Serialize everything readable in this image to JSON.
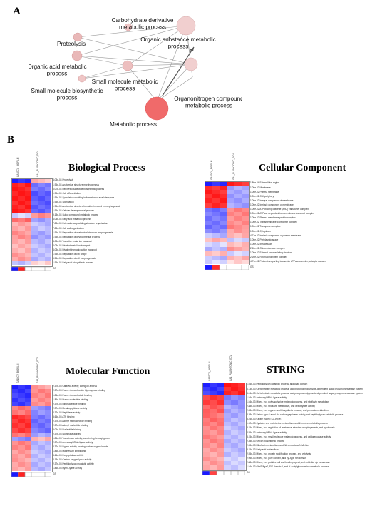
{
  "panelA": {
    "label": "A"
  },
  "panelB": {
    "label": "B"
  },
  "network": {
    "nodes": [
      {
        "id": "proteolysis",
        "label": [
          "Proteolysis"
        ]
      },
      {
        "id": "carb",
        "label": [
          "Carbohydrate derivative",
          "metabolic process"
        ]
      },
      {
        "id": "orgsub",
        "label": [
          "Organic substance metabolic",
          "process"
        ]
      },
      {
        "id": "orgacid",
        "label": [
          "Organic acid metabolic",
          "process"
        ]
      },
      {
        "id": "smallmol",
        "label": [
          "Small molecule metabolic",
          "process"
        ]
      },
      {
        "id": "smallbio",
        "label": [
          "Small molecule biosynthetic",
          "process"
        ]
      },
      {
        "id": "organonitrogen",
        "label": [
          "Organonitrogen compound",
          "metabolic process"
        ]
      },
      {
        "id": "metabolic",
        "label": [
          "Metabolic process"
        ]
      }
    ]
  },
  "heatmaps": {
    "bp": {
      "title": "Biological Process",
      "columns": [
        "GA1ECV_BIOFILM",
        "GA1_PLANKTONIC_ECV"
      ],
      "rows": [
        "4.08e-04 Proteolysis",
        "1.95e-04 Anatomical structure morphogenesis",
        "6.07e-04 Deoxyribonucleotide biosynthetic process",
        "1.95e-04 Cell differentiation",
        "1.95e-04 Sporulation resulting in formation of a cellular spore",
        "1.95e-04 Sporulation",
        "1.95e-04 Anatomical structure formation involved in morphogenesis",
        "1.95e-04 Cellular developmental process",
        "9.18e-04 Sulfur compound metabolic process",
        "4.08e-04 Fatty acid metabolic process",
        "7.83e-04 External encapsulating structure organization",
        "7.83e-04 Cell wall organization",
        "1.95e-04 Regulation of anatomical structure morphogenesis",
        "1.95e-04 Regulation of developmental process",
        "4.08e-04 Transition metal ion transport",
        "4.08e-04 Divalent metal ion transport",
        "4.08e-04 Divalent inorganic cation transport",
        "1.95e-04 Regulation of cell shape",
        "6.56e-04 Regulation of cell morphogenesis",
        "1.95e-04 Fatty acid biosynthetic process"
      ],
      "gs_label": "GS"
    },
    "cc": {
      "title": "Cellular Component",
      "columns": [
        "GA1ECV_BIOFILM",
        "GA1_PLANKTONIC_ECV"
      ],
      "rows": [
        "1.86e-04 Extracellular region",
        "1.00e-02 Membrane",
        "1.00e-02 Plasma membrane",
        "1.00e-02 Cell periphery",
        "1.00e-02 Integral component of membrane",
        "1.00e-02 Intrinsic component of membrane",
        "1.00e-02 ATP-binding cassette (ABC) transporter complex",
        "1.00e-02 ATPase dependent transmembrane transport complex",
        "1.00e-02 Plasma membrane protein complex",
        "1.00e-02 Transmembrane transporter complex",
        "1.00e-02 Transporter complex",
        "1.00e-02 Cytoplasm",
        "4.71e-02 Intrinsic component of plasma membrane",
        "1.00e-02 Periplasmic space",
        "1.00e-02 Intracellular",
        "2.12e-02 Oxidoreductase complex",
        "1.00e-02 External encapsulating structure",
        "2.20e-02 Ribonucleoprotein complex",
        "4.71e-02 Proton-transporting two-sector ATPase complex, catalytic domain"
      ],
      "gs_label": "GS"
    },
    "mf": {
      "title": "Molecular Function",
      "columns": [
        "GA1ECV_BIOFILM",
        "GA1_PLANKTONIC_ECV"
      ],
      "rows": [
        "2.37e-03 Catalytic activity, acting on a tRNA",
        "2.37e-03 Purine ribonucleoside triphosphate binding",
        "1.84e-03 Purine ribonucleotide binding",
        "1.84e-03 Purine nucleotide binding",
        "2.37e-03 Ribonucleotide binding",
        "2.37e-03 Metallopeptidase activity",
        "2.37e-03 Peptidase activity",
        "3.64e-03 ATP binding",
        "2.37e-03 Adenyl ribonucleotide binding",
        "2.37e-03 Adenyl nucleotide binding",
        "3.04e-03 Nucleotide binding",
        "2.37e-03 Isomerase activity",
        "1.84e-03 Transferase activity, transferring hexosyl groups",
        "2.37e-03 aminoacyl-tRNA ligase activity",
        "2.37e-03 Ligase activity, forming carbon-oxygen bonds",
        "1.84e-03 Magnesium ion binding",
        "3.64e-03 Exopeptidase activity",
        "2.13e-03 Carbon-oxygen lyase activity",
        "2.37e-03 Peptidoglycan muralytic activity",
        "1.84e-03 Hydro-lyase activity"
      ],
      "gs_label": "GS"
    },
    "string": {
      "title": "STRING",
      "columns": [
        "GA1ECV_BIOFILM",
        "GA1_PLANKTONIC_ECV"
      ],
      "rows": [
        "1.54e-03 Peptidoglycan catabolic process, and chap domain",
        "6.13e-03 Carbohydrate metabolic process, and phosphoenolpyruvate-dependent sugar phosphotransferase system",
        "3.24e-03 Carbohydrate metabolic process, and phosphoenolpyruvate-dependent sugar phosphotransferase system",
        "1.54e-03 aminoacyl-tRNA ligase activity",
        "1.54e-03 Mixed, incl. polysaccharide metabolic process, and riboflavin metabolism",
        "2.88e-03 Mixed, incl. riboflavin metabolism, and deacetylase activity",
        "2.28e-03 Mixed, incl. organic acid biosynthetic process, and pyruvate metabolism",
        "2.28e-03 Serine-type d-ala-d-ala carboxypeptidase activity, and peptidoglycan catabolic process",
        "3.24e-03 Citrate cycle (TCA cycle)",
        "1.12e-03 Cysteine and methionine metabolism, and threonine metabolic process",
        "3.15e-03 Mixed, incl. regulation of anatomical structure morphogenesis, and cytokinesis",
        "2.55e-03 aminoacyl-tRNA ligase activity",
        "3.15e-03 Mixed, incl. small molecule metabolic process, and oxidoreductase activity",
        "2.28e-03 Glycan biosynthetic process",
        "2.28e-03 Riboflavin metabolism, and Nitroreductase NfsB-like",
        "3.15e-03 Fatty acid metabolism",
        "2.55e-03 Mixed, incl. protein modification process, and cytolysis",
        "2.95e-03 Mixed, incl. pure domain, and cyt-type hth domain",
        "2.88e-03 Mixed, incl. putative cell wall binding repeat, and rmlA-like nip transferase",
        "1.54e-03 GlmS/AgaS, SIS domain 1, and N-acetylglucosamine metabolic process"
      ],
      "gs_label": "GS"
    }
  }
}
